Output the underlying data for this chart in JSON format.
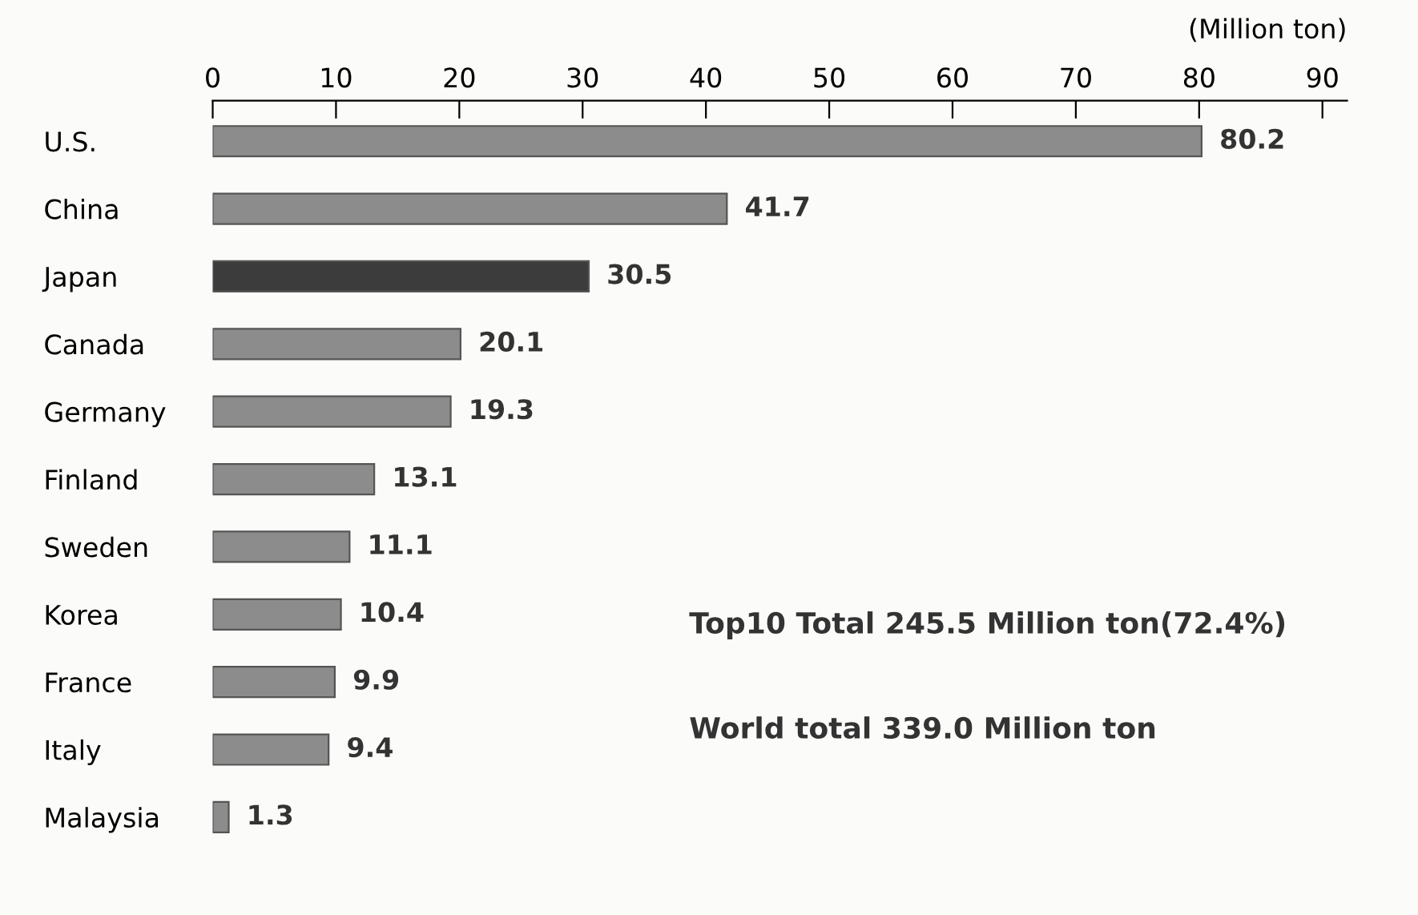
{
  "chart_data": {
    "type": "bar",
    "orientation": "horizontal",
    "xlabel": "(Million ton)",
    "categories": [
      "U.S.",
      "China",
      "Japan",
      "Canada",
      "Germany",
      "Finland",
      "Sweden",
      "Korea",
      "France",
      "Italy",
      "Malaysia"
    ],
    "values": [
      80.2,
      41.7,
      30.5,
      20.1,
      19.3,
      13.1,
      11.1,
      10.4,
      9.9,
      9.4,
      1.3
    ],
    "colors": [
      "#8c8c8c",
      "#8c8c8c",
      "#3c3c3c",
      "#8c8c8c",
      "#8c8c8c",
      "#8c8c8c",
      "#8c8c8c",
      "#8c8c8c",
      "#8c8c8c",
      "#8c8c8c",
      "#8c8c8c"
    ],
    "xlim": [
      0,
      92
    ],
    "xticks": [
      0,
      10,
      20,
      30,
      40,
      50,
      60,
      70,
      80,
      90
    ],
    "data_labels": true,
    "grid": false,
    "legend": false,
    "annotations": [
      "Top10 Total 245.5 Million ton(72.4%)",
      "World total 339.0 Million ton"
    ]
  }
}
